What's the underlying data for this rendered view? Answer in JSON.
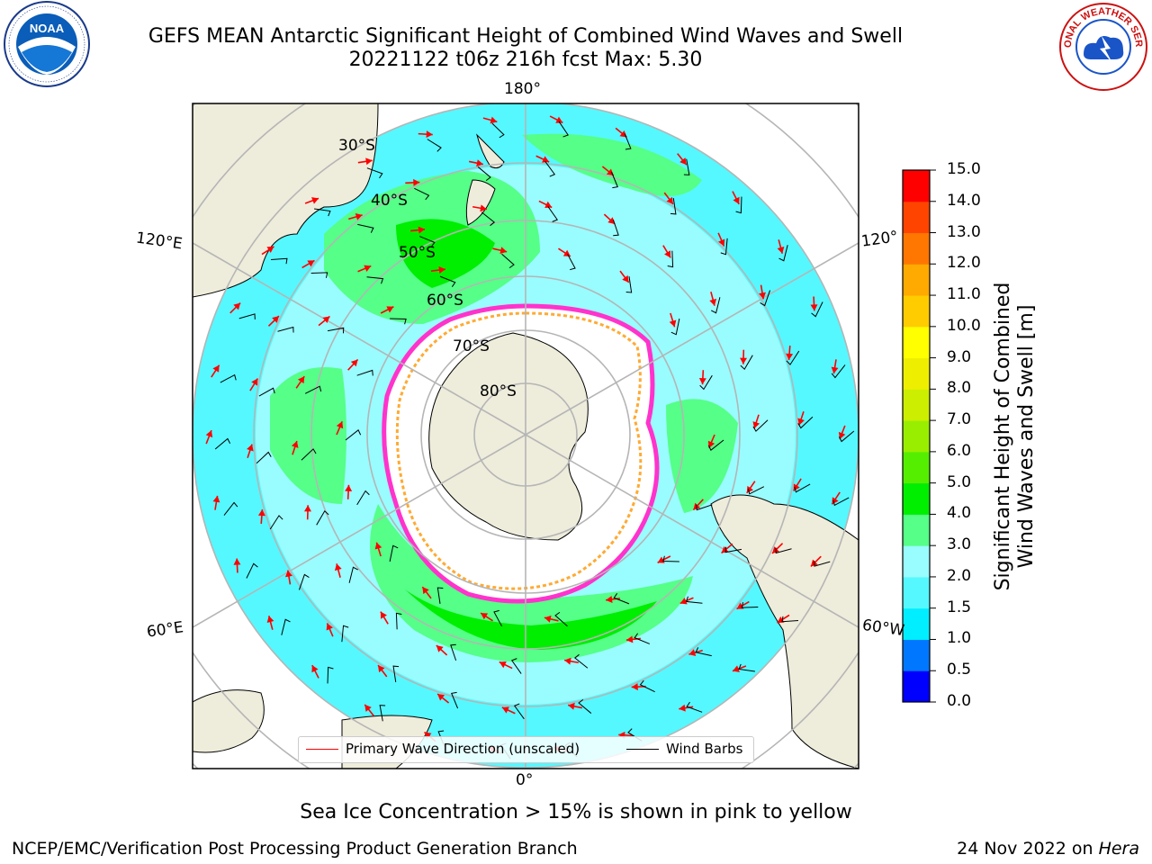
{
  "title": {
    "line1": "GEFS MEAN Antarctic Significant Height of Combined Wind Waves and Swell",
    "line2": "20221122 t06z 216h fcst   Max: 5.30"
  },
  "logos": {
    "left": "NOAA",
    "right_text": "NATIONAL WEATHER SERVICE"
  },
  "map": {
    "longitude_labels": {
      "top": "180°",
      "upper_left": "120°E",
      "upper_right": "120°",
      "lower_left": "60°E",
      "lower_right": "60°W",
      "bottom": "0°"
    },
    "latitude_labels": [
      "30°S",
      "40°S",
      "50°S",
      "60°S",
      "70°S",
      "80°S"
    ],
    "colors": {
      "land": "#eeecdb",
      "ice_shelf": "#ffffff",
      "grid": "#b5b5b5",
      "wave_arrow": "#ff0000",
      "wind_barb": "#000000",
      "sea_ice_edge": "#ff33cc"
    }
  },
  "legend": {
    "items": [
      {
        "label": "Primary Wave Direction (unscaled)",
        "color": "#ff0000"
      },
      {
        "label": "Wind Barbs",
        "color": "#000000"
      }
    ]
  },
  "colorbar": {
    "label_line1": "Significant Height of Combined",
    "label_line2": "Wind Waves and Swell [m]",
    "ticks": [
      "15.0",
      "14.0",
      "13.0",
      "12.0",
      "11.0",
      "10.0",
      "9.0",
      "8.0",
      "7.0",
      "6.0",
      "5.0",
      "4.0",
      "3.0",
      "2.0",
      "1.5",
      "1.0",
      "0.5",
      "0.0"
    ],
    "colors": [
      "#0000ff",
      "#0077ff",
      "#00eeff",
      "#55f8ff",
      "#99fcff",
      "#55ff88",
      "#00ee00",
      "#55ee00",
      "#99ee00",
      "#ccee00",
      "#eeee00",
      "#ffff00",
      "#ffcc00",
      "#ffaa00",
      "#ff7700",
      "#ff4400",
      "#ff0000"
    ]
  },
  "footer": {
    "ice_note": "Sea Ice Concentration > 15% is shown in pink to yellow",
    "credit": "NCEP/EMC/Verification Post Processing Product Generation Branch",
    "date": "24 Nov 2022 on ",
    "machine": "Hera"
  }
}
